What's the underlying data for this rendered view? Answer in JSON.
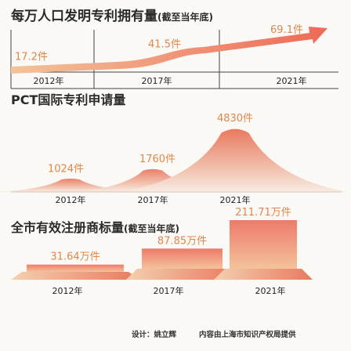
{
  "charts": [
    {
      "title": "每万人口发明专利拥有量",
      "note": "(截至当年底)",
      "type": "line",
      "categories": [
        "2012年",
        "2017年",
        "2021年"
      ],
      "labels": [
        "17.2件",
        "41.5件",
        "69.1件"
      ],
      "values": [
        17.2,
        41.5,
        69.1
      ]
    },
    {
      "title": "PCT国际专利申请量",
      "type": "area",
      "categories": [
        "2012年",
        "2017年",
        "2021年"
      ],
      "labels": [
        "1024件",
        "1760件",
        "4830件"
      ],
      "values": [
        1024,
        1760,
        4830
      ]
    },
    {
      "title": "全市有效注册商标量",
      "note": "(截至当年底)",
      "type": "bar",
      "categories": [
        "2012年",
        "2017年",
        "2021年"
      ],
      "labels": [
        "31.64万件",
        "87.85万件",
        "211.71万件"
      ],
      "values": [
        31.64,
        87.85,
        211.71
      ]
    }
  ],
  "chart_data": [
    {
      "type": "line",
      "title": "每万人口发明专利拥有量(截至当年底)",
      "categories": [
        "2012年",
        "2017年",
        "2021年"
      ],
      "values": [
        17.2,
        41.5,
        69.1
      ],
      "unit": "件"
    },
    {
      "type": "area",
      "title": "PCT国际专利申请量",
      "categories": [
        "2012年",
        "2017年",
        "2021年"
      ],
      "values": [
        1024,
        1760,
        4830
      ],
      "unit": "件"
    },
    {
      "type": "bar",
      "title": "全市有效注册商标量(截至当年底)",
      "categories": [
        "2012年",
        "2017年",
        "2021年"
      ],
      "values": [
        31.64,
        87.85,
        211.71
      ],
      "unit": "万件"
    }
  ],
  "footer": {
    "design": "设计：姚立辉",
    "source": "内容由上海市知识产权局提供"
  },
  "colors": {
    "accent": "#e0874a",
    "arrow": "#ee6a58",
    "peak": "#e9795f",
    "bar_top": "#ef7a6a",
    "bar_bottom": "#f3c39a"
  }
}
